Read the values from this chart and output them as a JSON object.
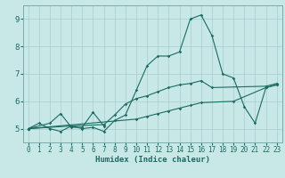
{
  "xlabel": "Humidex (Indice chaleur)",
  "bg_color": "#c8e8e8",
  "line_color": "#1a6b60",
  "grid_color": "#a8cccc",
  "xlim": [
    -0.5,
    23.5
  ],
  "ylim": [
    4.5,
    9.5
  ],
  "yticks": [
    5,
    6,
    7,
    8,
    9
  ],
  "xticks": [
    0,
    1,
    2,
    3,
    4,
    5,
    6,
    7,
    8,
    9,
    10,
    11,
    12,
    13,
    14,
    15,
    16,
    17,
    18,
    19,
    20,
    21,
    22,
    23
  ],
  "line1_x": [
    0,
    1,
    2,
    3,
    4,
    5,
    6,
    7,
    8,
    9,
    10,
    11,
    12,
    13,
    14,
    15,
    16,
    17,
    18,
    19,
    20,
    21,
    22,
    23
  ],
  "line1_y": [
    5.0,
    5.2,
    5.0,
    4.9,
    5.1,
    5.0,
    5.05,
    4.9,
    5.3,
    5.5,
    6.4,
    7.3,
    7.65,
    7.65,
    7.8,
    9.0,
    9.15,
    8.4,
    7.0,
    6.85,
    5.8,
    5.2,
    6.5,
    6.6
  ],
  "line2_x": [
    0,
    2,
    3,
    4,
    5,
    6,
    7
  ],
  "line2_y": [
    5.0,
    5.2,
    5.55,
    5.05,
    5.05,
    5.6,
    5.1
  ],
  "line3_x": [
    0,
    4,
    7,
    8,
    9,
    10,
    11,
    12,
    13,
    14,
    15,
    16,
    17,
    22,
    23
  ],
  "line3_y": [
    5.0,
    5.1,
    5.15,
    5.5,
    5.9,
    6.1,
    6.2,
    6.35,
    6.5,
    6.6,
    6.65,
    6.75,
    6.5,
    6.55,
    6.65
  ],
  "line4_x": [
    0,
    10,
    11,
    12,
    13,
    14,
    15,
    16,
    19,
    22,
    23
  ],
  "line4_y": [
    5.0,
    5.35,
    5.45,
    5.55,
    5.65,
    5.75,
    5.85,
    5.95,
    6.0,
    6.5,
    6.6
  ]
}
